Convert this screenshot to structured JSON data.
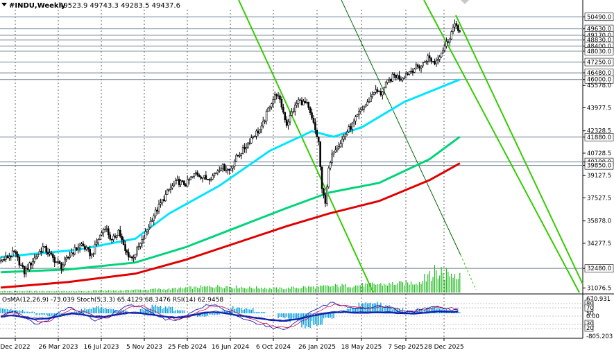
{
  "header": {
    "symbol": "#INDU,Weekly",
    "ohlc": "49523.9 49743.3 49283.5 49437.6"
  },
  "oscillator_label": "OsMA(12,26,9) -73.039  Stoch(5,3,3) 65.4129 68.3476  RSI(14) 62.9458",
  "colors": {
    "background": "#ffffff",
    "candles": "#000000",
    "ma_fast": "#00e5ff",
    "ma_mid": "#00d47a",
    "ma_slow": "#e00000",
    "channel": "#33cc00",
    "channel_dark": "#006600",
    "volume": "#22bb22",
    "osma": "#00a0e0",
    "macd_line": "#0a1fb0",
    "stoch_main": "#0000aa",
    "stoch_signal": "#cc0044",
    "rsi": "#333399",
    "level_line": "#6b7f8f"
  },
  "chart_data": {
    "type": "candlestick",
    "timeframe": "Weekly",
    "y_axis_ticks": [
      "50490.0",
      "49630.0",
      "49170.0",
      "48830.0",
      "48400.0",
      "48030.0",
      "47250.0",
      "46480.0",
      "46000.0",
      "45578.0",
      "43977.5",
      "42328.5",
      "41880.0",
      "40728.5",
      "40100.0",
      "39850.0",
      "39127.5",
      "37527.5",
      "35878.0",
      "34277.5",
      "32480.0",
      "31076.5"
    ],
    "y_range": [
      30750,
      51000
    ],
    "x_ticks": [
      "Dec 2022",
      "26 Mar 2023",
      "16 Jul 2023",
      "5 Nov 2023",
      "25 Feb 2024",
      "16 Jun 2024",
      "6 Oct 2024",
      "26 Jan 2025",
      "18 May 2025",
      "7 Sep 2025",
      "28 Dec 2025"
    ],
    "horizontal_levels": [
      50490,
      49630,
      49170,
      48830,
      48400,
      48030,
      47250,
      46480,
      46000,
      41880,
      40100,
      39850,
      32480
    ],
    "price_path": [
      [
        0,
        33000
      ],
      [
        8,
        33600
      ],
      [
        14,
        32200
      ],
      [
        20,
        33200
      ],
      [
        25,
        34000
      ],
      [
        31,
        33200
      ],
      [
        36,
        32600
      ],
      [
        42,
        33600
      ],
      [
        48,
        34200
      ],
      [
        54,
        33400
      ],
      [
        58,
        34600
      ],
      [
        62,
        35500
      ],
      [
        66,
        34400
      ],
      [
        70,
        35200
      ],
      [
        74,
        33700
      ],
      [
        78,
        33200
      ],
      [
        84,
        34400
      ],
      [
        90,
        36100
      ],
      [
        96,
        37300
      ],
      [
        100,
        38100
      ],
      [
        105,
        38700
      ],
      [
        110,
        38500
      ],
      [
        116,
        39300
      ],
      [
        122,
        38900
      ],
      [
        126,
        39100
      ],
      [
        131,
        39800
      ],
      [
        136,
        39500
      ],
      [
        140,
        40400
      ],
      [
        145,
        41100
      ],
      [
        150,
        42000
      ],
      [
        155,
        42500
      ],
      [
        160,
        44200
      ],
      [
        164,
        45000
      ],
      [
        167,
        44100
      ],
      [
        170,
        42800
      ],
      [
        173,
        43600
      ],
      [
        177,
        44500
      ],
      [
        182,
        44200
      ],
      [
        186,
        42800
      ],
      [
        189,
        41500
      ],
      [
        191,
        38000
      ],
      [
        193,
        37300
      ],
      [
        195,
        39500
      ],
      [
        198,
        41000
      ],
      [
        202,
        41500
      ],
      [
        206,
        42300
      ],
      [
        210,
        42900
      ],
      [
        214,
        43800
      ],
      [
        218,
        44300
      ],
      [
        222,
        45200
      ],
      [
        226,
        45000
      ],
      [
        230,
        45800
      ],
      [
        234,
        46300
      ],
      [
        238,
        46100
      ],
      [
        242,
        46500
      ],
      [
        246,
        46800
      ],
      [
        250,
        47000
      ],
      [
        254,
        47600
      ],
      [
        258,
        47200
      ],
      [
        262,
        48000
      ],
      [
        266,
        48800
      ],
      [
        269,
        49700
      ],
      [
        271,
        49900
      ],
      [
        273,
        49440
      ]
    ],
    "moving_averages": [
      {
        "name": "MA fast",
        "color": "#00e5ff",
        "points": [
          [
            0,
            33300
          ],
          [
            45,
            33800
          ],
          [
            80,
            34600
          ],
          [
            100,
            36400
          ],
          [
            130,
            38400
          ],
          [
            160,
            40900
          ],
          [
            185,
            42300
          ],
          [
            198,
            41900
          ],
          [
            215,
            42600
          ],
          [
            240,
            44400
          ],
          [
            273,
            46000
          ]
        ]
      },
      {
        "name": "MA mid",
        "color": "#00d47a",
        "points": [
          [
            0,
            32200
          ],
          [
            40,
            32400
          ],
          [
            80,
            32900
          ],
          [
            110,
            34000
          ],
          [
            140,
            35400
          ],
          [
            170,
            36800
          ],
          [
            195,
            37900
          ],
          [
            225,
            38600
          ],
          [
            255,
            40300
          ],
          [
            273,
            41900
          ]
        ]
      },
      {
        "name": "MA slow",
        "color": "#e00000",
        "points": [
          [
            0,
            31100
          ],
          [
            40,
            31500
          ],
          [
            80,
            32100
          ],
          [
            110,
            33100
          ],
          [
            140,
            34300
          ],
          [
            170,
            35500
          ],
          [
            195,
            36400
          ],
          [
            225,
            37300
          ],
          [
            255,
            38800
          ],
          [
            273,
            40000
          ]
        ]
      }
    ],
    "volume": [
      2,
      2,
      2,
      2,
      2,
      2,
      2,
      2,
      3,
      3,
      3,
      4,
      4,
      5,
      5,
      6,
      7,
      8,
      9,
      9,
      8,
      7,
      7,
      6,
      6,
      7,
      8,
      8,
      9,
      10,
      10,
      11,
      12,
      12,
      13,
      14,
      15,
      16,
      17,
      18
    ],
    "oscillator": {
      "osma_label": "OsMA(12,26,9)",
      "osma_value": -73.039,
      "stoch_label": "Stoch(5,3,3)",
      "stoch_main": 65.4129,
      "stoch_signal": 68.3476,
      "rsi_label": "RSI(14)",
      "rsi_value": 62.9458,
      "axis_ticks": [
        "670.931",
        "80",
        "70",
        "50",
        "0.00",
        "30",
        "20",
        "-805.203"
      ],
      "osma_hist": [
        0.3,
        0.2,
        0.1,
        -0.1,
        -0.2,
        -0.1,
        0.1,
        0.3,
        0.4,
        0.3,
        0.2,
        0.1,
        0.3,
        0.5,
        0.4,
        0.2,
        0.0,
        -0.2,
        -0.1,
        0.2,
        0.4,
        0.3,
        0.1,
        0.0,
        -0.3,
        -0.5,
        -0.9,
        -0.7,
        -0.3,
        0.1,
        0.4,
        0.6,
        0.7,
        0.5,
        0.3,
        0.2,
        0.3,
        0.4,
        0.3,
        0.1
      ],
      "stoch_main_series": [
        50,
        62,
        45,
        30,
        40,
        60,
        72,
        55,
        40,
        48,
        65,
        78,
        70,
        55,
        42,
        38,
        55,
        72,
        80,
        66,
        50,
        40,
        30,
        22,
        18,
        35,
        55,
        70,
        82,
        76,
        64,
        70,
        74,
        68,
        60,
        62,
        70,
        74,
        66,
        65
      ],
      "stoch_signal_series": [
        52,
        58,
        50,
        38,
        36,
        52,
        66,
        62,
        48,
        44,
        58,
        72,
        74,
        62,
        48,
        40,
        48,
        64,
        76,
        72,
        58,
        46,
        36,
        26,
        22,
        28,
        46,
        62,
        76,
        78,
        70,
        68,
        72,
        70,
        64,
        62,
        66,
        72,
        70,
        68
      ],
      "rsi_series": [
        50,
        54,
        48,
        44,
        46,
        52,
        58,
        55,
        50,
        51,
        56,
        60,
        58,
        54,
        50,
        48,
        52,
        58,
        62,
        59,
        54,
        50,
        46,
        42,
        40,
        44,
        50,
        56,
        60,
        62,
        60,
        59,
        61,
        60,
        58,
        58,
        60,
        63,
        62,
        63
      ]
    }
  }
}
